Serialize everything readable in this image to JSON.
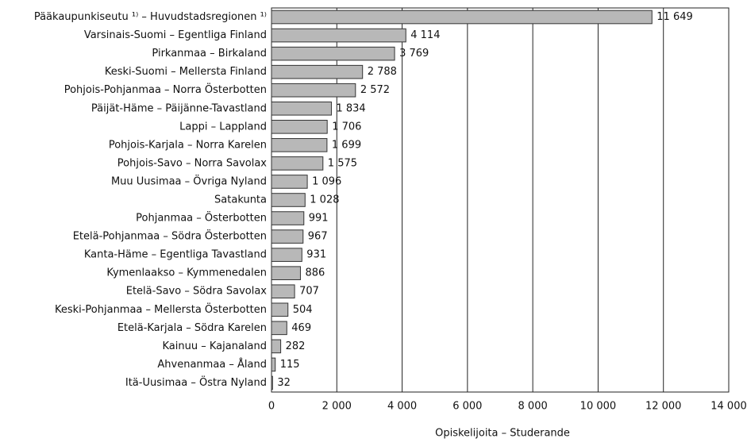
{
  "chart_data": {
    "type": "bar",
    "orientation": "horizontal",
    "x_label": "Opiskelijoita – Studerande",
    "categories": [
      "Pääkaupunkiseutu ¹⁾ – Huvudstadsregionen ¹⁾",
      "Varsinais-Suomi – Egentliga Finland",
      "Pirkanmaa – Birkaland",
      "Keski-Suomi – Mellersta Finland",
      "Pohjois-Pohjanmaa – Norra Österbotten",
      "Päijät-Häme – Päijänne-Tavastland",
      "Lappi – Lappland",
      "Pohjois-Karjala – Norra Karelen",
      "Pohjois-Savo – Norra Savolax",
      "Muu Uusimaa – Övriga Nyland",
      "Satakunta",
      "Pohjanmaa – Österbotten",
      "Etelä-Pohjanmaa – Södra Österbotten",
      "Kanta-Häme – Egentliga Tavastland",
      "Kymenlaakso – Kymmenedalen",
      "Etelä-Savo – Södra Savolax",
      "Keski-Pohjanmaa – Mellersta Österbotten",
      "Etelä-Karjala – Södra Karelen",
      "Kainuu – Kajanaland",
      "Ahvenanmaa – Åland",
      "Itä-Uusimaa – Östra Nyland"
    ],
    "values": [
      11649,
      4114,
      3769,
      2788,
      2572,
      1834,
      1706,
      1699,
      1575,
      1096,
      1028,
      991,
      967,
      931,
      886,
      707,
      504,
      469,
      282,
      115,
      32
    ],
    "value_labels": [
      "11 649",
      "4 114",
      "3 769",
      "2 788",
      "2 572",
      "1 834",
      "1 706",
      "1 699",
      "1 575",
      "1 096",
      "1 028",
      "991",
      "967",
      "931",
      "886",
      "707",
      "504",
      "469",
      "282",
      "115",
      "32"
    ],
    "color": "#b8b8b8",
    "xlim": [
      0,
      14000
    ],
    "xticks": [
      0,
      {
        "value": 2000,
        "label": "2 000"
      },
      {
        "value": 4000,
        "label": "4 000"
      },
      {
        "value": 6000,
        "label": "6 000"
      },
      {
        "value": 8000,
        "label": "8 000"
      },
      {
        "value": 10000,
        "label": "10 000"
      },
      {
        "value": 12000,
        "label": "12 000"
      },
      {
        "value": 14000,
        "label": "14 000"
      }
    ],
    "grid": true
  }
}
